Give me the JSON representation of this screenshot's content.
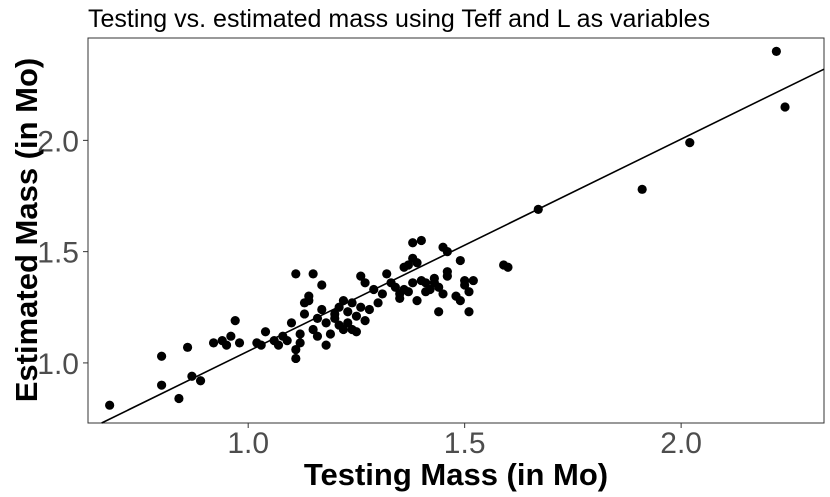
{
  "chart_data": {
    "type": "scatter",
    "title": "Testing vs. estimated mass using Teff and L as variables",
    "xlabel": "Testing Mass (in Mo)",
    "ylabel": "Estimated Mass (in Mo)",
    "xlim": [
      0.63,
      2.33
    ],
    "ylim": [
      0.73,
      2.46
    ],
    "xticks": [
      1.0,
      1.5,
      2.0
    ],
    "xtick_labels": [
      "1.0",
      "1.5",
      "2.0"
    ],
    "yticks": [
      1.0,
      1.5,
      2.0
    ],
    "ytick_labels": [
      "1.0",
      "1.5",
      "2.0"
    ],
    "grid": false,
    "trend_line": {
      "x": [
        0.63,
        2.33
      ],
      "y": [
        0.7,
        2.32
      ]
    },
    "points": [
      [
        0.68,
        0.81
      ],
      [
        0.8,
        1.03
      ],
      [
        0.8,
        0.9
      ],
      [
        0.84,
        0.84
      ],
      [
        0.86,
        1.07
      ],
      [
        0.87,
        0.94
      ],
      [
        0.89,
        0.92
      ],
      [
        0.92,
        1.09
      ],
      [
        0.94,
        1.1
      ],
      [
        0.95,
        1.08
      ],
      [
        0.96,
        1.12
      ],
      [
        0.97,
        1.19
      ],
      [
        0.98,
        1.09
      ],
      [
        1.02,
        1.09
      ],
      [
        1.03,
        1.08
      ],
      [
        1.04,
        1.14
      ],
      [
        1.06,
        1.1
      ],
      [
        1.07,
        1.08
      ],
      [
        1.08,
        1.12
      ],
      [
        1.09,
        1.1
      ],
      [
        1.1,
        1.18
      ],
      [
        1.11,
        1.02
      ],
      [
        1.11,
        1.06
      ],
      [
        1.12,
        1.09
      ],
      [
        1.12,
        1.13
      ],
      [
        1.13,
        1.27
      ],
      [
        1.13,
        1.22
      ],
      [
        1.14,
        1.3
      ],
      [
        1.15,
        1.15
      ],
      [
        1.16,
        1.2
      ],
      [
        1.16,
        1.12
      ],
      [
        1.17,
        1.24
      ],
      [
        1.17,
        1.35
      ],
      [
        1.18,
        1.08
      ],
      [
        1.18,
        1.18
      ],
      [
        1.19,
        1.13
      ],
      [
        1.2,
        1.2
      ],
      [
        1.21,
        1.17
      ],
      [
        1.21,
        1.25
      ],
      [
        1.22,
        1.28
      ],
      [
        1.22,
        1.15
      ],
      [
        1.23,
        1.23
      ],
      [
        1.23,
        1.18
      ],
      [
        1.24,
        1.27
      ],
      [
        1.24,
        1.15
      ],
      [
        1.25,
        1.21
      ],
      [
        1.25,
        1.14
      ],
      [
        1.26,
        1.25
      ],
      [
        1.26,
        1.39
      ],
      [
        1.27,
        1.19
      ],
      [
        1.27,
        1.36
      ],
      [
        1.28,
        1.24
      ],
      [
        1.29,
        1.33
      ],
      [
        1.3,
        1.27
      ],
      [
        1.31,
        1.31
      ],
      [
        1.32,
        1.4
      ],
      [
        1.33,
        1.36
      ],
      [
        1.34,
        1.34
      ],
      [
        1.35,
        1.29
      ],
      [
        1.35,
        1.31
      ],
      [
        1.36,
        1.33
      ],
      [
        1.36,
        1.43
      ],
      [
        1.37,
        1.44
      ],
      [
        1.37,
        1.32
      ],
      [
        1.38,
        1.47
      ],
      [
        1.38,
        1.54
      ],
      [
        1.38,
        1.36
      ],
      [
        1.39,
        1.45
      ],
      [
        1.39,
        1.28
      ],
      [
        1.4,
        1.37
      ],
      [
        1.4,
        1.55
      ],
      [
        1.41,
        1.32
      ],
      [
        1.41,
        1.36
      ],
      [
        1.42,
        1.33
      ],
      [
        1.43,
        1.36
      ],
      [
        1.43,
        1.38
      ],
      [
        1.44,
        1.23
      ],
      [
        1.44,
        1.34
      ],
      [
        1.45,
        1.52
      ],
      [
        1.45,
        1.31
      ],
      [
        1.46,
        1.39
      ],
      [
        1.46,
        1.5
      ],
      [
        1.46,
        1.41
      ],
      [
        1.48,
        1.3
      ],
      [
        1.49,
        1.28
      ],
      [
        1.49,
        1.46
      ],
      [
        1.5,
        1.37
      ],
      [
        1.5,
        1.35
      ],
      [
        1.51,
        1.32
      ],
      [
        1.51,
        1.23
      ],
      [
        1.52,
        1.37
      ],
      [
        1.59,
        1.44
      ],
      [
        1.6,
        1.43
      ],
      [
        1.67,
        1.69
      ],
      [
        1.91,
        1.78
      ],
      [
        2.02,
        1.99
      ],
      [
        2.22,
        2.4
      ],
      [
        2.24,
        2.15
      ],
      [
        1.11,
        1.4
      ],
      [
        1.15,
        1.4
      ],
      [
        1.14,
        1.28
      ],
      [
        1.2,
        1.22
      ]
    ]
  }
}
